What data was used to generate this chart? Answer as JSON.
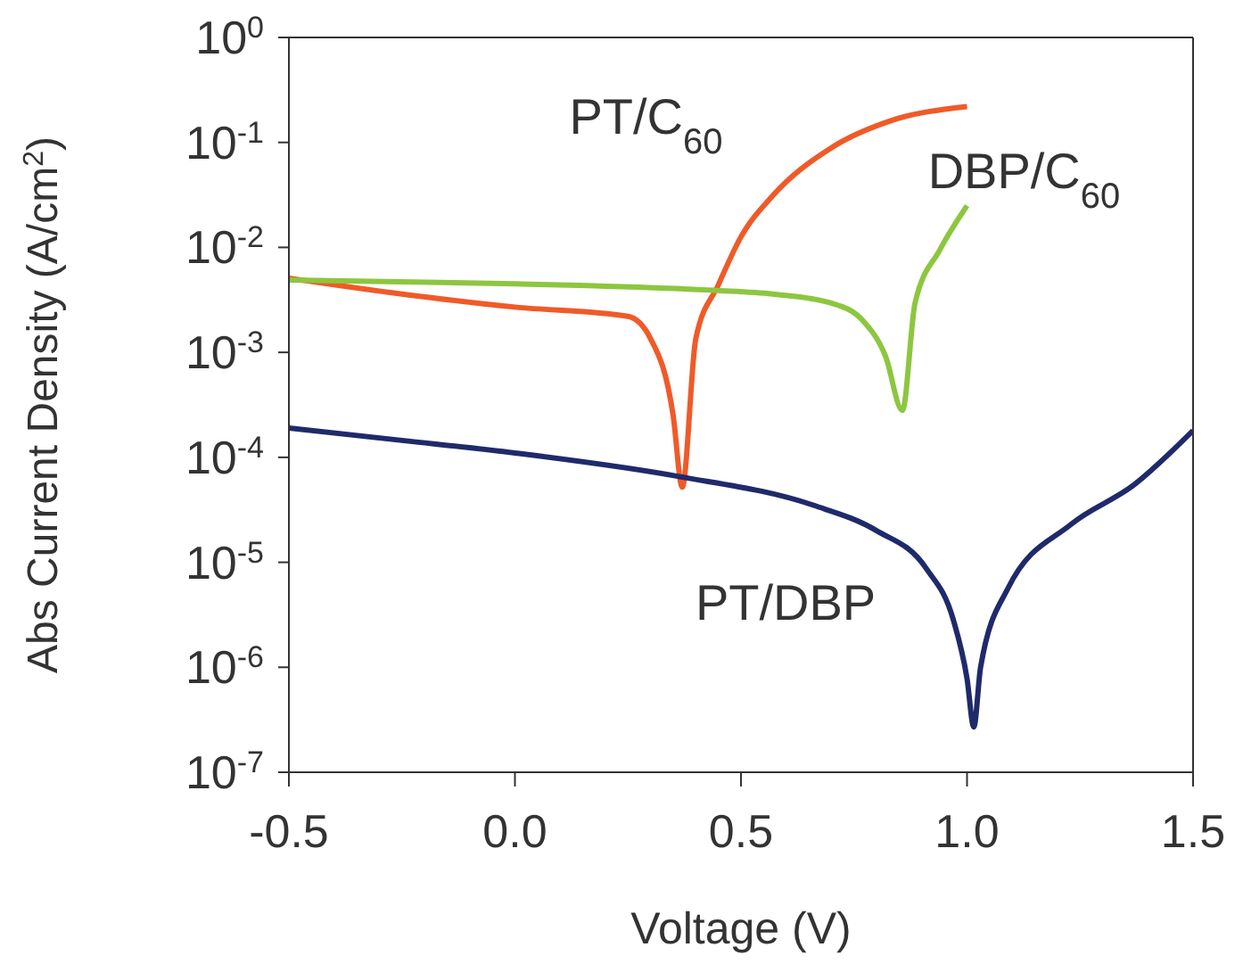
{
  "chart_data": {
    "type": "line",
    "xlabel": "Voltage (V)",
    "ylabel": "Abs Current Density (A/cm$^{2}$)",
    "log": "y",
    "xlim": [
      -0.5,
      1.5
    ],
    "xticks": [
      -0.5,
      {
        "value": 0,
        "label": "0.0"
      },
      0.5,
      {
        "value": 1,
        "label": "1.0"
      },
      1.5
    ],
    "ylim": [
      1e-07,
      1
    ],
    "yticks": [
      {
        "value": 1e-07,
        "label": "10$^{-7}$"
      },
      {
        "value": 1e-06,
        "label": "10$^{-6}$"
      },
      {
        "value": 1e-05,
        "label": "10$^{-5}$"
      },
      {
        "value": 0.0001,
        "label": "10$^{-4}$"
      },
      {
        "value": 0.001,
        "label": "10$^{-3}$"
      },
      {
        "value": 0.01,
        "label": "10$^{-2}$"
      },
      {
        "value": 0.1,
        "label": "10$^{-1}$"
      },
      {
        "value": 1,
        "label": "10$^{0}$"
      }
    ],
    "marker": "none",
    "line_style": "solid",
    "series": [
      {
        "name": "PT/C$_{60}$",
        "color": "#f05a28",
        "x": [
          -0.5,
          -0.25,
          0,
          0.25,
          0.3,
          0.35,
          0.37,
          0.4,
          0.45,
          0.5,
          0.57,
          0.7,
          0.83,
          1.0
        ],
        "values": [
          0.0051,
          0.0036,
          0.0027,
          0.0022,
          0.00135,
          0.00025,
          5.2e-05,
          0.00135,
          0.0044,
          0.0126,
          0.031,
          0.089,
          0.16,
          0.22
        ]
      },
      {
        "name": "DBP/C$_{60}$",
        "color": "#8dc63f",
        "x": [
          -0.5,
          0,
          0.44,
          0.57,
          0.7,
          0.77,
          0.82,
          0.857,
          0.885,
          0.94,
          1.0
        ],
        "values": [
          0.0049,
          0.0045,
          0.0039,
          0.0036,
          0.00295,
          0.002,
          0.00091,
          0.00028,
          0.00295,
          0.0095,
          0.025
        ]
      },
      {
        "name": "PT/DBP",
        "color": "#1f2a6b",
        "x": [
          -0.5,
          -0.25,
          0,
          0.36,
          0.66,
          0.8,
          0.91,
          0.97,
          1.0,
          1.015,
          1.03,
          1.09,
          1.23,
          1.37,
          1.5
        ],
        "values": [
          0.00019,
          0.000145,
          0.00011,
          6.6e-05,
          3.5e-05,
          2e-05,
          8.7e-06,
          2.8e-06,
          7.8e-07,
          2.7e-07,
          1e-06,
          5.6e-06,
          2.3e-05,
          5.5e-05,
          0.00018
        ]
      }
    ]
  }
}
